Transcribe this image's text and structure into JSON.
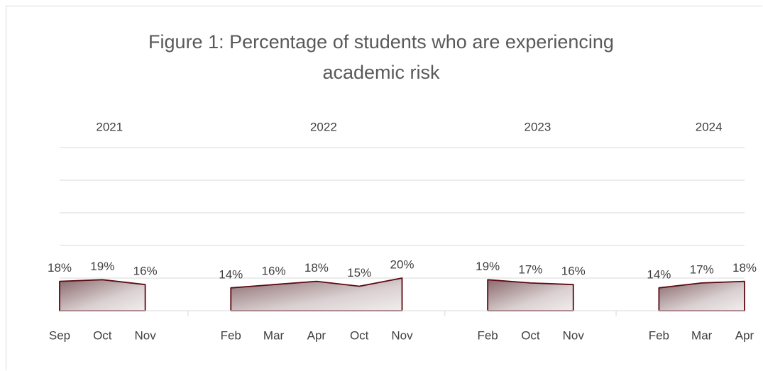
{
  "chart_data": {
    "type": "area",
    "title": "Figure 1: Percentage of students who are experiencing academic risk",
    "years": [
      "2021",
      "2022",
      "2023",
      "2024"
    ],
    "categories": [
      "Sep",
      "Oct",
      "Nov",
      null,
      "Feb",
      "Mar",
      "Apr",
      "Oct",
      "Nov",
      null,
      "Feb",
      "Oct",
      "Nov",
      null,
      "Feb",
      "Mar",
      "Apr"
    ],
    "values": [
      18,
      19,
      16,
      null,
      14,
      16,
      18,
      15,
      20,
      null,
      19,
      17,
      16,
      null,
      14,
      17,
      18
    ],
    "value_labels": [
      "18%",
      "19%",
      "16%",
      null,
      "14%",
      "16%",
      "18%",
      "15%",
      "20%",
      null,
      "19%",
      "17%",
      "16%",
      null,
      "14%",
      "17%",
      "18%"
    ],
    "color": "#5c0a14",
    "ylim": [
      0,
      100
    ],
    "yticks": [
      0,
      20,
      40,
      60,
      80,
      100
    ],
    "ytick_labels": false,
    "grid": true
  }
}
